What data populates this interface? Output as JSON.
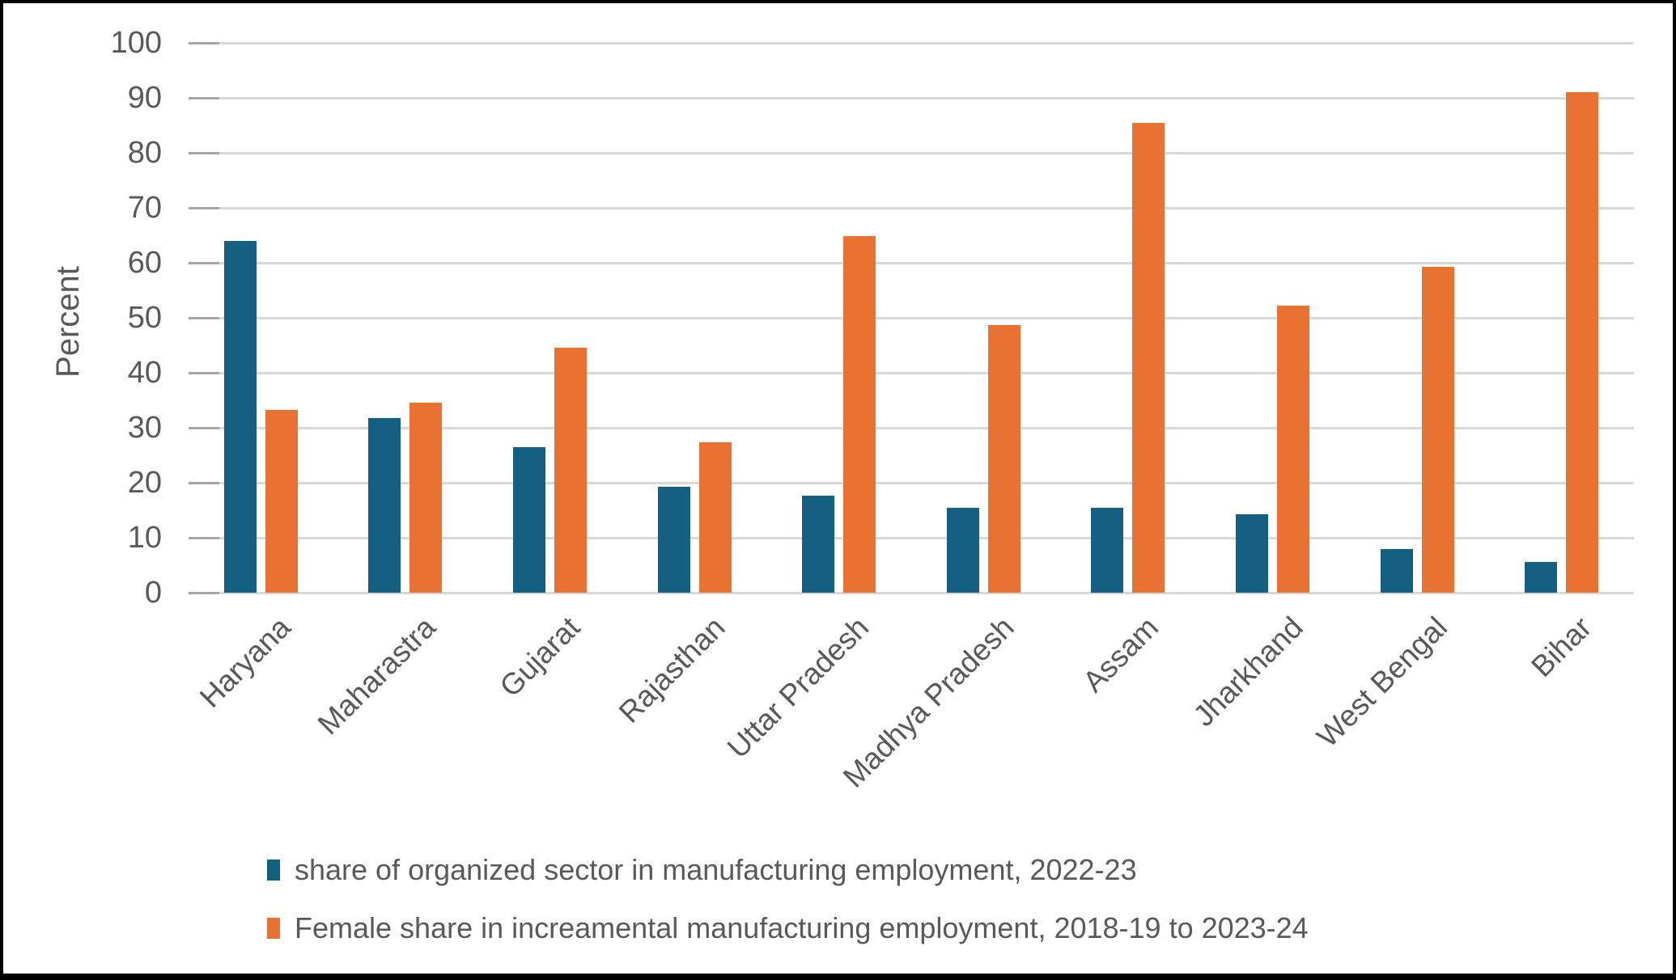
{
  "chart_data": {
    "type": "bar",
    "title": "",
    "ylabel": "Percent",
    "xlabel": "",
    "ylim": [
      0,
      100
    ],
    "yticks": [
      0,
      10,
      20,
      30,
      40,
      50,
      60,
      70,
      80,
      90,
      100
    ],
    "grid": "horizontal",
    "legend_position": "bottom-left",
    "categories": [
      "Haryana",
      "Maharastra",
      "Gujarat",
      "Rajasthan",
      "Uttar Pradesh",
      "Madhya Pradesh",
      "Assam",
      "Jharkhand",
      "West Bengal",
      "Bihar"
    ],
    "series": [
      {
        "name": "share of organized sector in manufacturing employment, 2022-23",
        "color": "#156082",
        "values": [
          64.0,
          31.8,
          26.5,
          19.2,
          17.6,
          15.5,
          15.5,
          14.2,
          7.9,
          5.6
        ]
      },
      {
        "name": "Female share in increamental manufacturing employment, 2018-19 to 2023-24",
        "color": "#E97132",
        "values": [
          33.2,
          34.5,
          44.6,
          27.3,
          64.9,
          48.7,
          85.4,
          52.2,
          59.3,
          91.1
        ]
      }
    ]
  },
  "colors": {
    "background": "#FFFFFF",
    "border": "#000000",
    "gridline": "#D9D9D9",
    "tick_mark": "#A6A6A6",
    "text": "#595959"
  }
}
